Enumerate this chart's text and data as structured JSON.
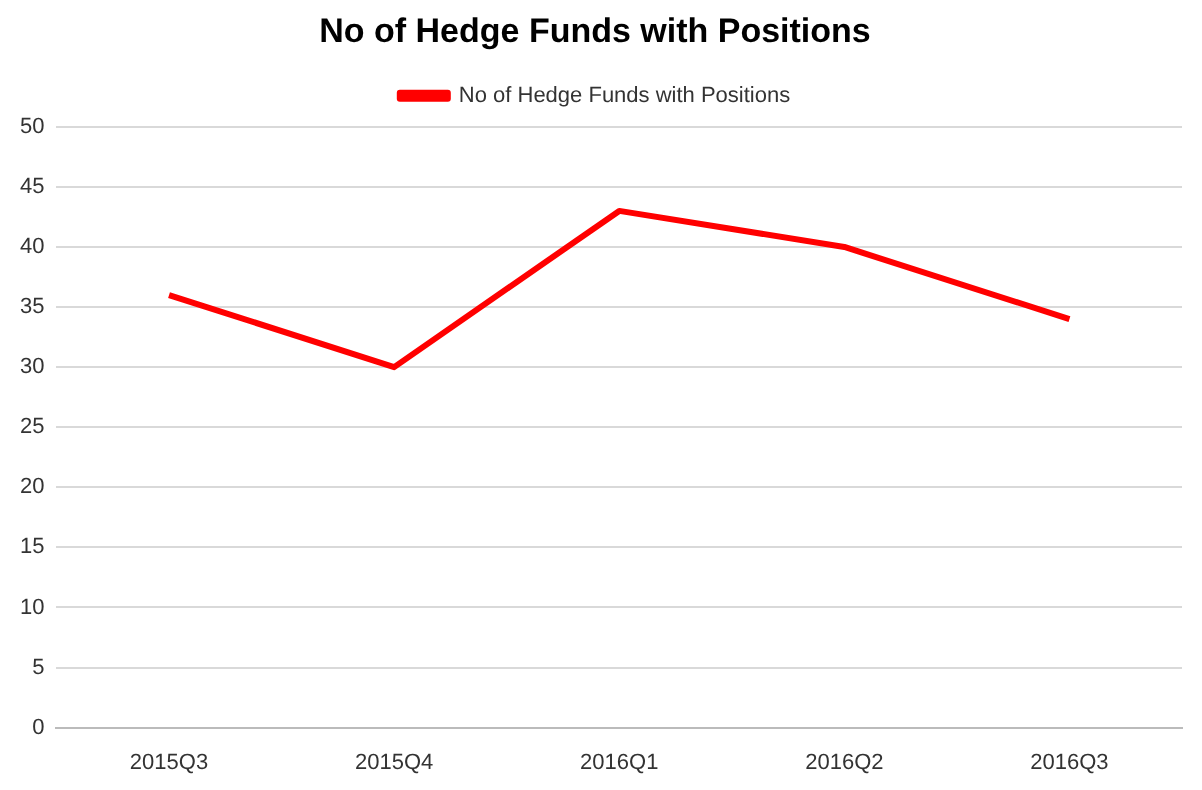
{
  "chart_data": {
    "type": "line",
    "title": "No of Hedge Funds with Positions",
    "categories": [
      "2015Q3",
      "2015Q4",
      "2016Q1",
      "2016Q2",
      "2016Q3"
    ],
    "series": [
      {
        "name": "No of Hedge Funds with Positions",
        "color": "#ff0000",
        "values": [
          36,
          30,
          43,
          40,
          34
        ]
      }
    ],
    "ylim": [
      0,
      50
    ],
    "yticks": [
      0,
      5,
      10,
      15,
      20,
      25,
      30,
      35,
      40,
      45,
      50
    ],
    "grid": "y",
    "legend": "top",
    "marker": "none",
    "line_style": "solid"
  }
}
